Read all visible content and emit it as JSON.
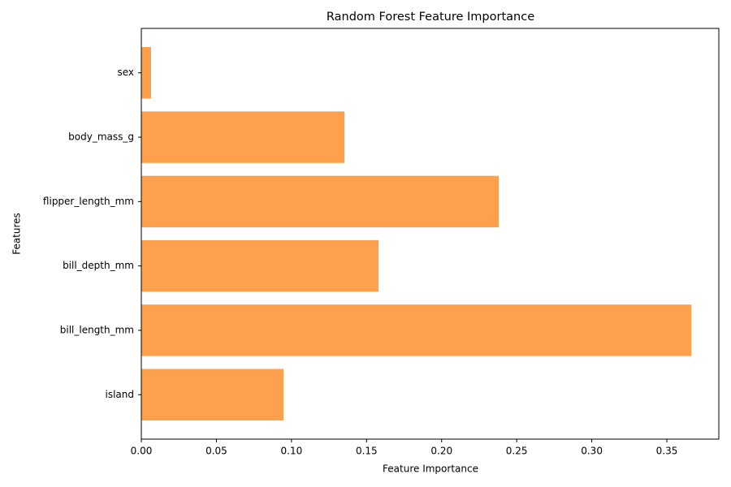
{
  "chart_data": {
    "type": "barh",
    "title": "Random Forest Feature Importance",
    "x_label": "Feature Importance",
    "y_label": "Features",
    "categories": [
      "island",
      "bill_length_mm",
      "bill_depth_mm",
      "flipper_length_mm",
      "body_mass_g",
      "sex"
    ],
    "values": [
      0.0947,
      0.3663,
      0.158,
      0.2381,
      0.1353,
      0.0065
    ],
    "color": "#ffa04d",
    "xlim": [
      0,
      0.3846
    ],
    "xticks": [
      {
        "value": 0,
        "label": "0.00"
      },
      {
        "value": 0.05,
        "label": "0.05"
      },
      {
        "value": 0.1,
        "label": "0.10"
      },
      {
        "value": 0.15,
        "label": "0.15"
      },
      {
        "value": 0.2,
        "label": "0.20"
      },
      {
        "value": 0.25,
        "label": "0.25"
      },
      {
        "value": 0.3,
        "label": "0.30"
      },
      {
        "value": 0.35,
        "label": "0.35"
      }
    ],
    "grid": false
  }
}
